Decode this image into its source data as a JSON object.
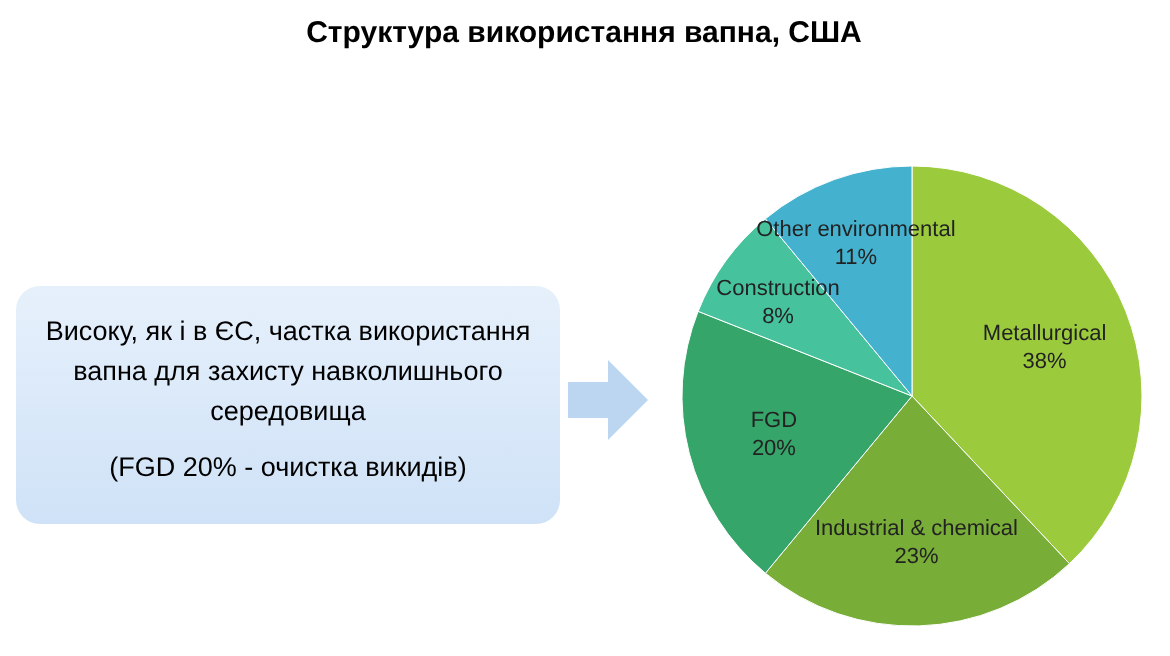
{
  "chart_data": {
    "type": "pie",
    "title": "Структура використання вапна, США",
    "categories": [
      "Metallurgical",
      "Industrial & chemical",
      "FGD",
      "Construction",
      "Other environmental"
    ],
    "values": [
      38,
      23,
      20,
      8,
      11
    ],
    "colors": [
      "#9bcb3c",
      "#78ad38",
      "#36a56a",
      "#46c39c",
      "#44b2cf"
    ],
    "value_labels": [
      "38%",
      "23%",
      "20%",
      "8%",
      "11%"
    ],
    "annotations": [
      "Високу, як і в ЄС, частка використання вапна для захисту навколишнього середовища",
      "(FGD 20% -  очистка викидів)"
    ]
  }
}
